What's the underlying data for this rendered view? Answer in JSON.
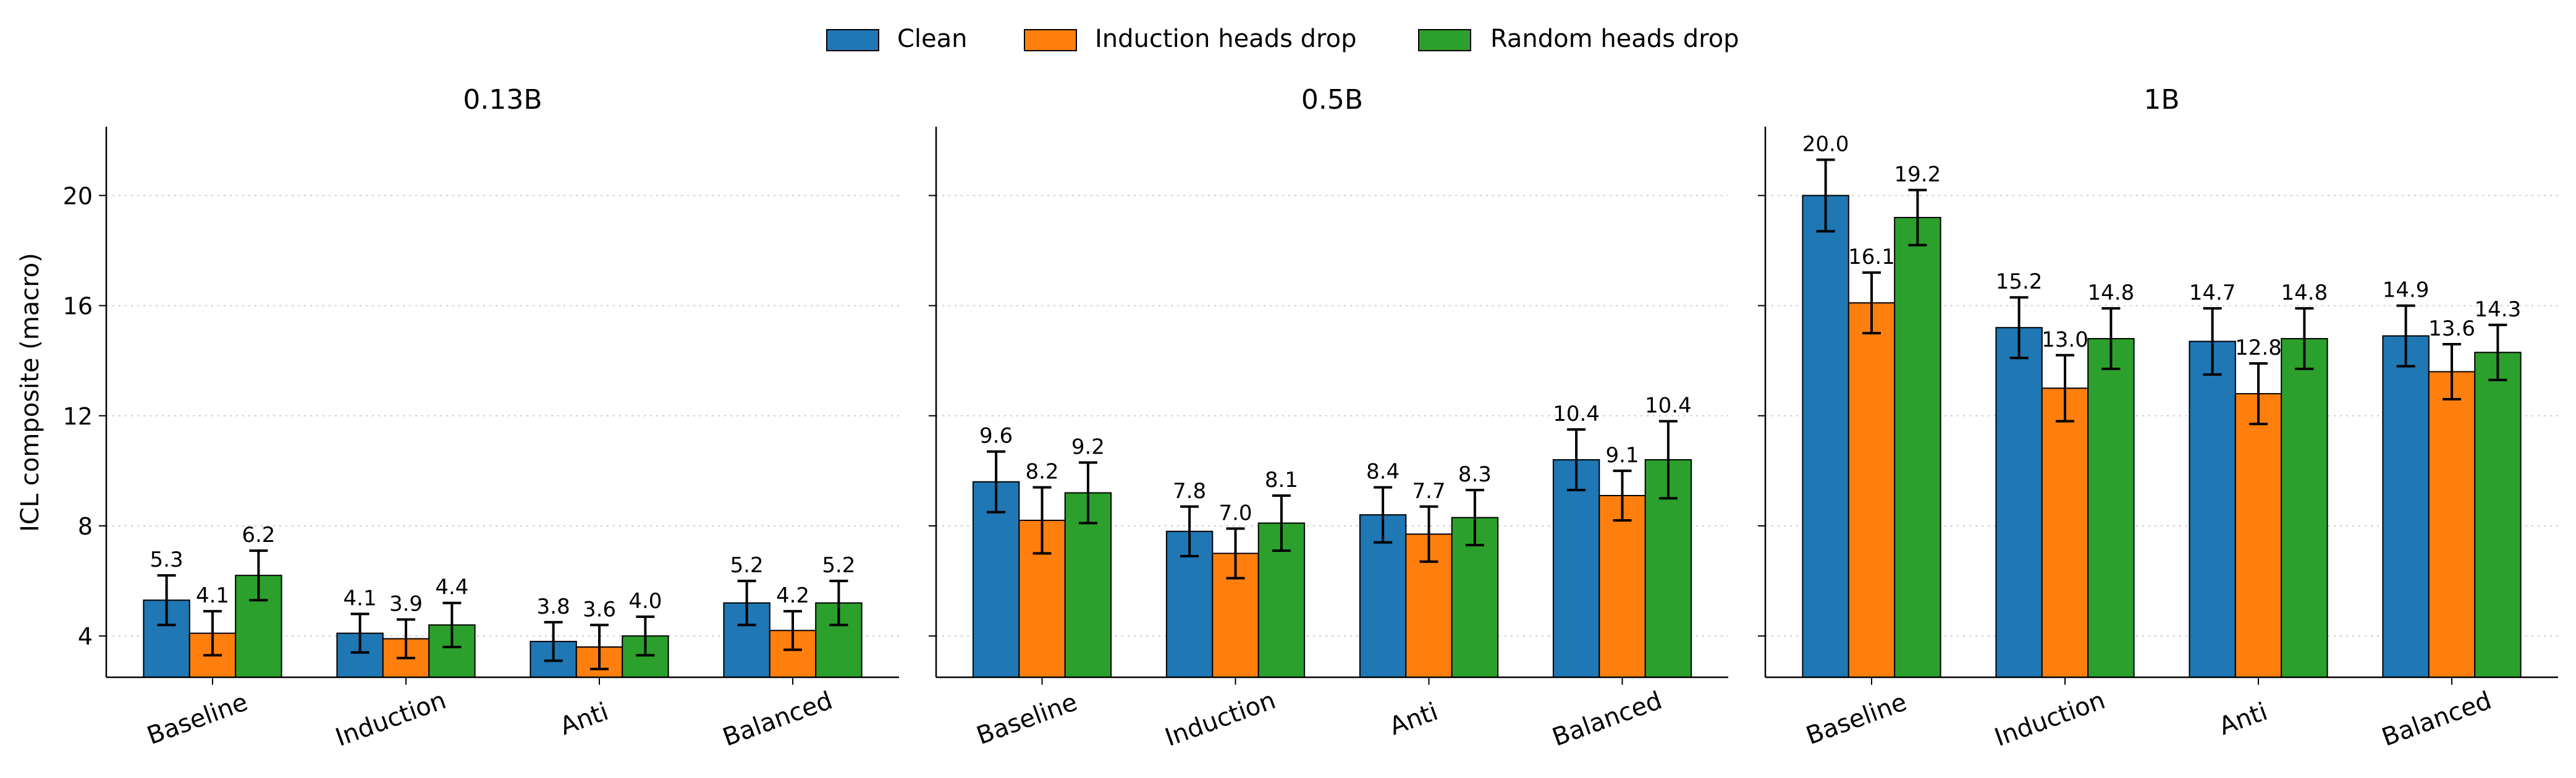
{
  "figure": {
    "ylabel": "ICL composite (macro)",
    "legend": {
      "placement": "top-center",
      "entries": [
        {
          "name": "Clean",
          "color": "#1f77b4"
        },
        {
          "name": "Induction heads drop",
          "color": "#ff7f0e"
        },
        {
          "name": "Random heads drop",
          "color": "#2ca02c"
        }
      ]
    },
    "yticks": [
      "4",
      "8",
      "12",
      "16",
      "20"
    ],
    "error_bar_color": "#000000",
    "grid_color": "#cccccc"
  },
  "chart_data": [
    {
      "type": "bar",
      "title": "0.13B",
      "categories": [
        "Baseline",
        "Induction",
        "Anti",
        "Balanced"
      ],
      "ylim": [
        2.5,
        22.5
      ],
      "grid": "y-dotted",
      "series": [
        {
          "name": "Clean",
          "values": [
            5.3,
            4.1,
            3.8,
            5.2
          ],
          "labels": [
            "5.3",
            "4.1",
            "3.8",
            "5.2"
          ],
          "err": [
            0.9,
            0.7,
            0.7,
            0.8
          ]
        },
        {
          "name": "Induction heads drop",
          "values": [
            4.1,
            3.9,
            3.6,
            4.2
          ],
          "labels": [
            "4.1",
            "3.9",
            "3.6",
            "4.2"
          ],
          "err": [
            0.8,
            0.7,
            0.8,
            0.7
          ]
        },
        {
          "name": "Random heads drop",
          "values": [
            6.2,
            4.4,
            4.0,
            5.2
          ],
          "labels": [
            "6.2",
            "4.4",
            "4.0",
            "5.2"
          ],
          "err": [
            0.9,
            0.8,
            0.7,
            0.8
          ]
        }
      ]
    },
    {
      "type": "bar",
      "title": "0.5B",
      "categories": [
        "Baseline",
        "Induction",
        "Anti",
        "Balanced"
      ],
      "ylim": [
        2.5,
        22.5
      ],
      "grid": "y-dotted",
      "series": [
        {
          "name": "Clean",
          "values": [
            9.6,
            7.8,
            8.4,
            10.4
          ],
          "labels": [
            "9.6",
            "7.8",
            "8.4",
            "10.4"
          ],
          "err": [
            1.1,
            0.9,
            1.0,
            1.1
          ]
        },
        {
          "name": "Induction heads drop",
          "values": [
            8.2,
            7.0,
            7.7,
            9.1
          ],
          "labels": [
            "8.2",
            "7.0",
            "7.7",
            "9.1"
          ],
          "err": [
            1.2,
            0.9,
            1.0,
            0.9
          ]
        },
        {
          "name": "Random heads drop",
          "values": [
            9.2,
            8.1,
            8.3,
            10.4
          ],
          "labels": [
            "9.2",
            "8.1",
            "8.3",
            "10.4"
          ],
          "err": [
            1.1,
            1.0,
            1.0,
            1.4
          ]
        }
      ]
    },
    {
      "type": "bar",
      "title": "1B",
      "categories": [
        "Baseline",
        "Induction",
        "Anti",
        "Balanced"
      ],
      "ylim": [
        2.5,
        22.5
      ],
      "grid": "y-dotted",
      "series": [
        {
          "name": "Clean",
          "values": [
            20.0,
            15.2,
            14.7,
            14.9
          ],
          "labels": [
            "20.0",
            "15.2",
            "14.7",
            "14.9"
          ],
          "err": [
            1.3,
            1.1,
            1.2,
            1.1
          ]
        },
        {
          "name": "Induction heads drop",
          "values": [
            16.1,
            13.0,
            12.8,
            13.6
          ],
          "labels": [
            "16.1",
            "13.0",
            "12.8",
            "13.6"
          ],
          "err": [
            1.1,
            1.2,
            1.1,
            1.0
          ]
        },
        {
          "name": "Random heads drop",
          "values": [
            19.2,
            14.8,
            14.8,
            14.3
          ],
          "labels": [
            "19.2",
            "14.8",
            "14.8",
            "14.3"
          ],
          "err": [
            1.0,
            1.1,
            1.1,
            1.0
          ]
        }
      ]
    }
  ]
}
